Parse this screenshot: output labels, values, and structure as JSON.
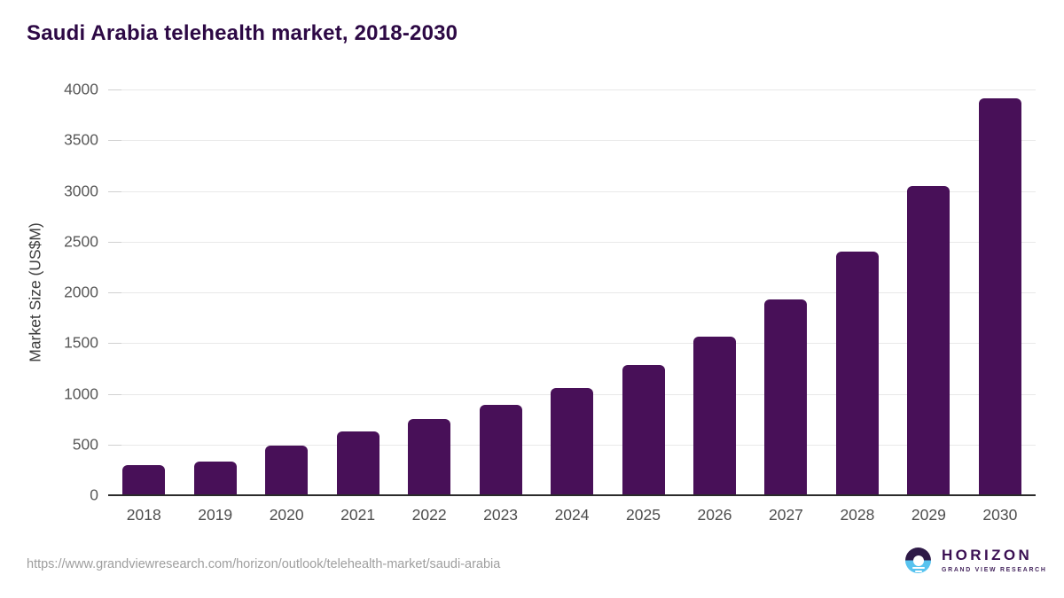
{
  "header": {
    "title": "Saudi Arabia telehealth market, 2018-2030"
  },
  "chart_data": {
    "type": "bar",
    "title": "Saudi Arabia telehealth market, 2018-2030",
    "categories": [
      "2018",
      "2019",
      "2020",
      "2021",
      "2022",
      "2023",
      "2024",
      "2025",
      "2026",
      "2027",
      "2028",
      "2029",
      "2030"
    ],
    "values": [
      300,
      335,
      485,
      630,
      755,
      895,
      1060,
      1285,
      1560,
      1930,
      2400,
      3050,
      3915
    ],
    "xlabel": "",
    "ylabel": "Market Size (US$M)",
    "ylim": [
      0,
      4000
    ],
    "yticks": [
      0,
      500,
      1000,
      1500,
      2000,
      2500,
      3000,
      3500,
      4000
    ],
    "grid": "horizontal",
    "legend_position": "none",
    "bar_color": "#481058"
  },
  "footer": {
    "source_url": "https://www.grandviewresearch.com/horizon/outlook/telehealth-market/saudi-arabia",
    "logo": {
      "title": "HORIZON",
      "subtitle": "GRAND VIEW RESEARCH",
      "icon": "sunset-horizon-circle-icon",
      "purple": "#2e1a47",
      "blue": "#57c3ef"
    }
  },
  "colors": {
    "title_text": "#2d0945",
    "bar": "#481058",
    "gridline": "#e9e9e9",
    "axis_line": "#2b2b2b",
    "tick_text": "#595959",
    "x_label_text": "#4d4d4d",
    "url_text": "#9e9e9e"
  }
}
